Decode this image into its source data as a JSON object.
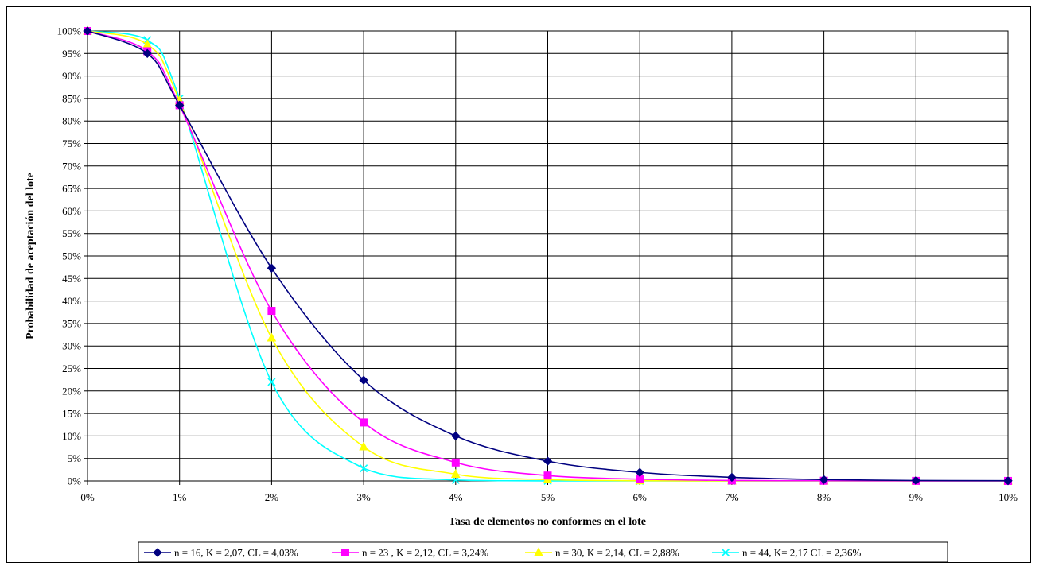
{
  "chart_data": {
    "type": "line",
    "title": "",
    "xlabel": "Tasa de elementos no conformes en el lote",
    "ylabel": "Probabilidad de aceptación del lote",
    "xlim": [
      0,
      10
    ],
    "ylim": [
      0,
      100
    ],
    "x_ticks": [
      "0%",
      "1%",
      "2%",
      "3%",
      "4%",
      "5%",
      "6%",
      "7%",
      "8%",
      "9%",
      "10%"
    ],
    "y_ticks": [
      "0%",
      "5%",
      "10%",
      "15%",
      "20%",
      "25%",
      "30%",
      "35%",
      "40%",
      "45%",
      "50%",
      "55%",
      "60%",
      "65%",
      "70%",
      "75%",
      "80%",
      "85%",
      "90%",
      "95%",
      "100%"
    ],
    "x_unit": "%",
    "y_unit": "%",
    "grid": true,
    "legend_position": "bottom",
    "series": [
      {
        "name": "n = 16, K = 2,07, CL = 4,03%",
        "color": "#000080",
        "marker": "diamond",
        "x": [
          0,
          0.65,
          1,
          2,
          3,
          4,
          5,
          6,
          7,
          8,
          9,
          10
        ],
        "y": [
          100,
          95,
          83.5,
          47.3,
          22.4,
          10,
          4.4,
          1.9,
          0.8,
          0.3,
          0.1,
          0.05
        ]
      },
      {
        "name": "n = 23 , K = 2,12, CL = 3,24%",
        "color": "#ff00ff",
        "marker": "square",
        "x": [
          0,
          0.65,
          1,
          2,
          3,
          4,
          5,
          6,
          7,
          8,
          9,
          10
        ],
        "y": [
          100,
          95.5,
          83.5,
          37.8,
          13,
          4.1,
          1.2,
          0.4,
          0.1,
          0.05,
          0.02,
          0.01
        ]
      },
      {
        "name": "n = 30, K = 2,14, CL = 2,88%",
        "color": "#ffff00",
        "marker": "triangle",
        "x": [
          0,
          0.65,
          1,
          2,
          3,
          4,
          5,
          6,
          7,
          8,
          9,
          10
        ],
        "y": [
          100,
          97,
          84.5,
          31.8,
          7.6,
          1.5,
          0.3,
          0.05,
          0.01,
          0,
          0,
          0
        ]
      },
      {
        "name": "n = 44, K= 2,17 CL = 2,36%",
        "color": "#00ffff",
        "marker": "x",
        "x": [
          0,
          0.65,
          1,
          2,
          3,
          4,
          5,
          6,
          7,
          8,
          9,
          10
        ],
        "y": [
          100,
          98,
          85,
          22,
          2.8,
          0.2,
          0.01,
          0,
          0,
          0,
          0,
          0
        ]
      }
    ]
  }
}
